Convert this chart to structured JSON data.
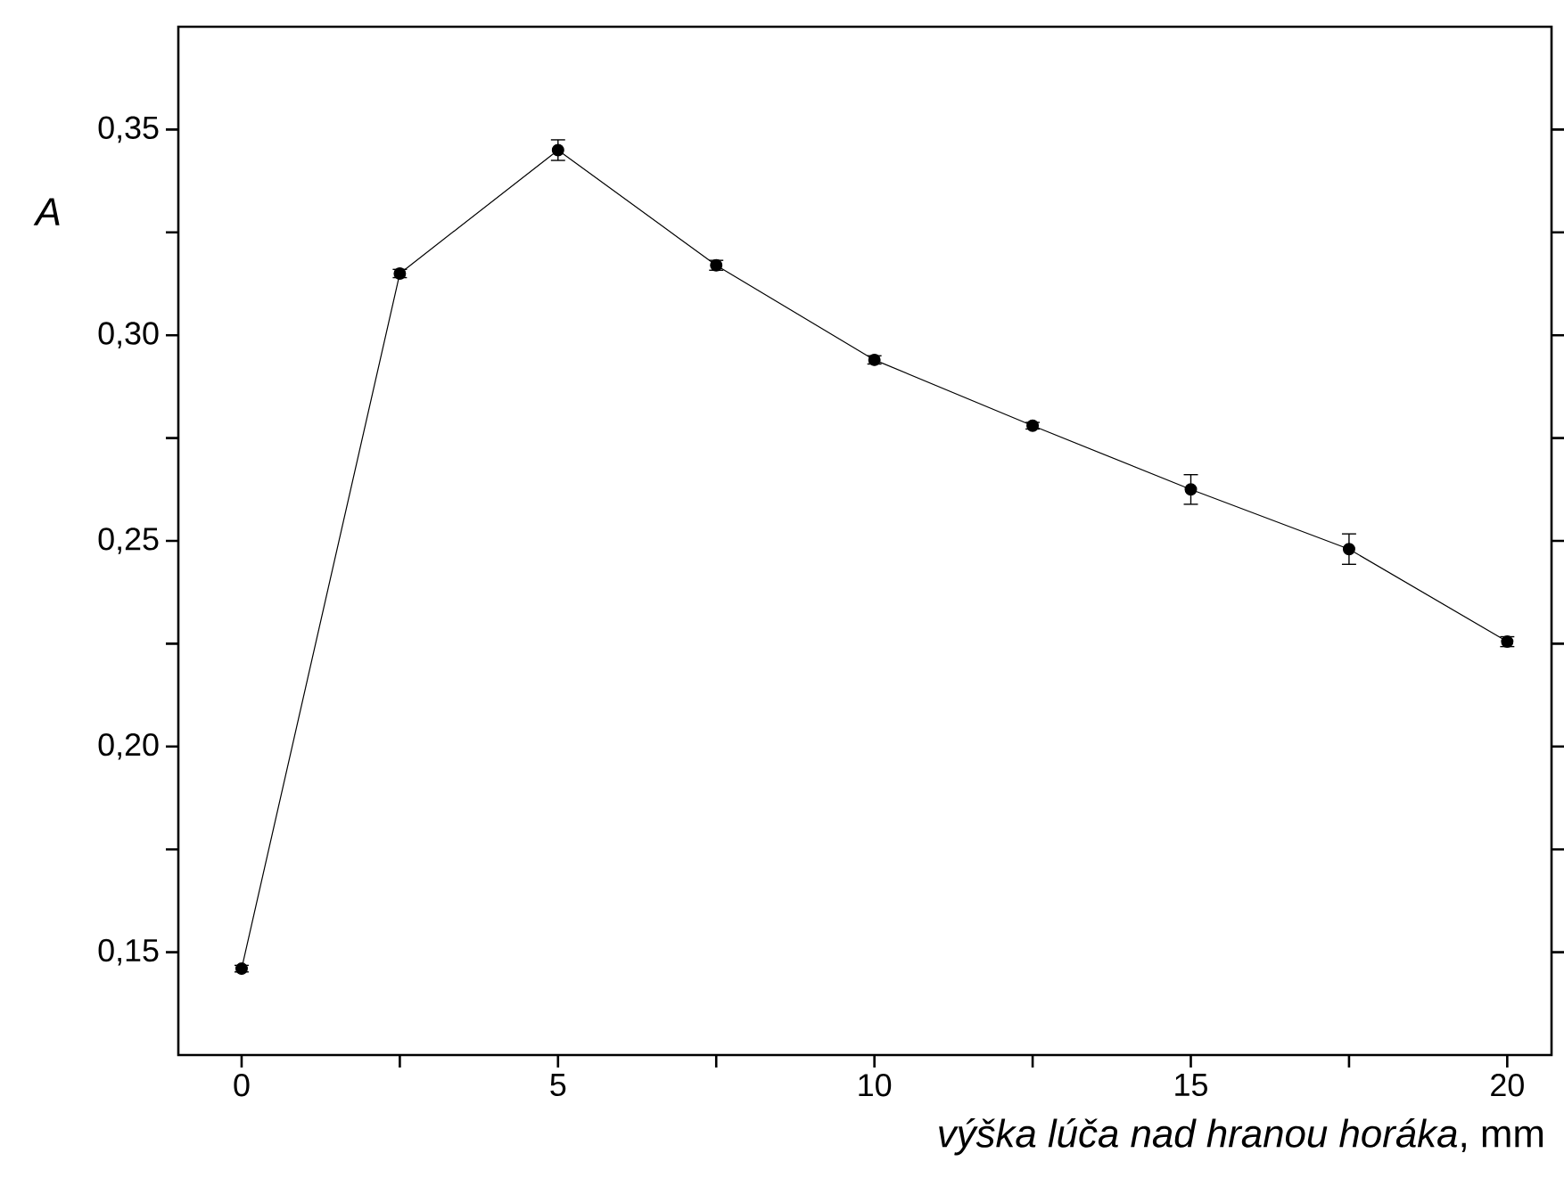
{
  "chart_data": {
    "type": "line",
    "xlabel": "*výška lúča nad hranou horáka*, mm",
    "ylabel": "A",
    "x": [
      0,
      2.5,
      5,
      7.5,
      10,
      12.5,
      15,
      17.5,
      20
    ],
    "series": [
      {
        "color": "#000000",
        "values": [
          0.146,
          0.315,
          0.345,
          0.317,
          0.294,
          0.278,
          0.2625,
          0.248,
          0.2255
        ],
        "errors": [
          0.0008,
          0.001,
          0.0025,
          0.0012,
          0.001,
          0.0008,
          0.0036,
          0.0037,
          0.0012
        ]
      }
    ],
    "marker": "circle",
    "line_style": "solid",
    "xlim": [
      -1,
      20.7
    ],
    "ylim": [
      0.125,
      0.375
    ],
    "xticks": [
      0,
      {
        "value": 2.5,
        "label": null
      },
      5,
      {
        "value": 7.5,
        "label": null
      },
      10,
      {
        "value": 12.5,
        "label": null
      },
      15,
      {
        "value": 17.5,
        "label": null
      },
      20
    ],
    "yticks": [
      {
        "value": 0.15,
        "label": "0,15"
      },
      {
        "value": 0.175,
        "label": null
      },
      {
        "value": 0.2,
        "label": "0,20"
      },
      {
        "value": 0.225,
        "label": null
      },
      {
        "value": 0.25,
        "label": "0,25"
      },
      {
        "value": 0.275,
        "label": null
      },
      {
        "value": 0.3,
        "label": "0,30"
      },
      {
        "value": 0.325,
        "label": null
      },
      {
        "value": 0.35,
        "label": "0,35"
      }
    ]
  }
}
